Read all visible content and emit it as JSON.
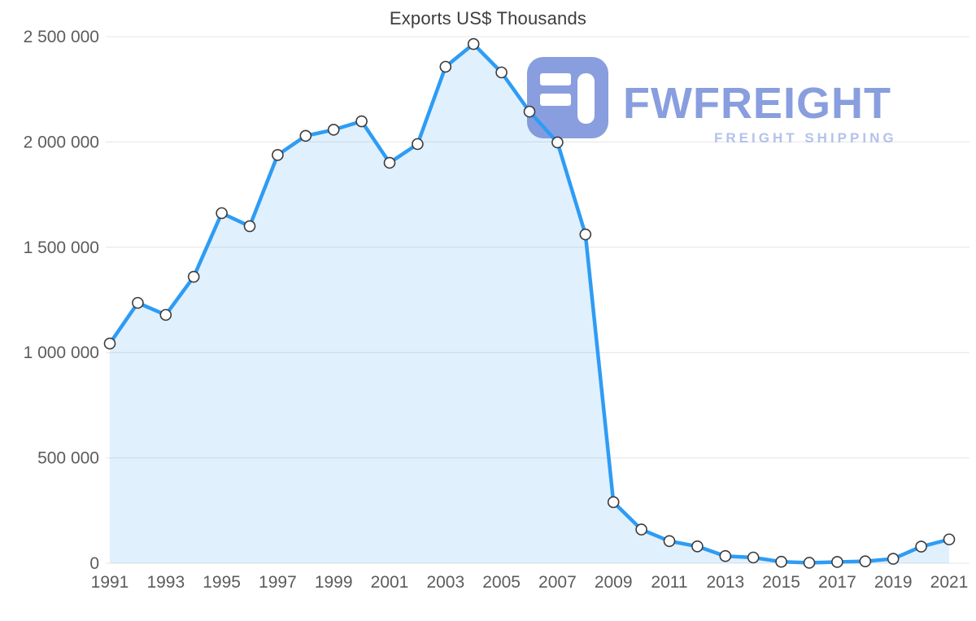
{
  "chart_data": {
    "type": "area",
    "title": "Exports US$ Thousands",
    "xlabel": "",
    "ylabel": "",
    "x": [
      1991,
      1992,
      1993,
      1994,
      1995,
      1996,
      1997,
      1998,
      1999,
      2000,
      2001,
      2002,
      2003,
      2004,
      2005,
      2006,
      2007,
      2008,
      2009,
      2010,
      2011,
      2012,
      2013,
      2014,
      2015,
      2016,
      2017,
      2018,
      2019,
      2020,
      2021
    ],
    "values": [
      1043000,
      1236000,
      1179000,
      1360000,
      1662000,
      1600000,
      1938000,
      2029000,
      2058000,
      2098000,
      1901000,
      1990000,
      2357000,
      2465000,
      2330000,
      2144000,
      1998000,
      1561000,
      290000,
      160000,
      105000,
      80000,
      34000,
      27000,
      7000,
      2000,
      6000,
      9000,
      21000,
      79000,
      113000
    ],
    "xtick_labels": [
      "1991",
      "1993",
      "1995",
      "1997",
      "1999",
      "2001",
      "2003",
      "2005",
      "2007",
      "2009",
      "2011",
      "2013",
      "2015",
      "2017",
      "2019",
      "2021"
    ],
    "ytick_values": [
      0,
      500000,
      1000000,
      1500000,
      2000000,
      2500000
    ],
    "ytick_labels": [
      "0",
      "500 000",
      "1 000 000",
      "1 500 000",
      "2 000 000",
      "2 500 000"
    ],
    "ylim": [
      0,
      2500000
    ],
    "grid": true,
    "legend": "none",
    "line_color": "#2e9cf4",
    "area_fill_color": "rgba(46,156,244,0.15)",
    "marker_fill": "#ffffff",
    "marker_stroke": "#3b3b3b",
    "grid_color": "#e4e4e4",
    "tick_color": "#5c5c5c"
  },
  "watermark": {
    "brand": "FWFREIGHT",
    "tagline": "FREIGHT SHIPPING",
    "brand_color": "#6c86d6",
    "tagline_color": "#9fb3e6",
    "icon_color": "#6c86d6"
  }
}
